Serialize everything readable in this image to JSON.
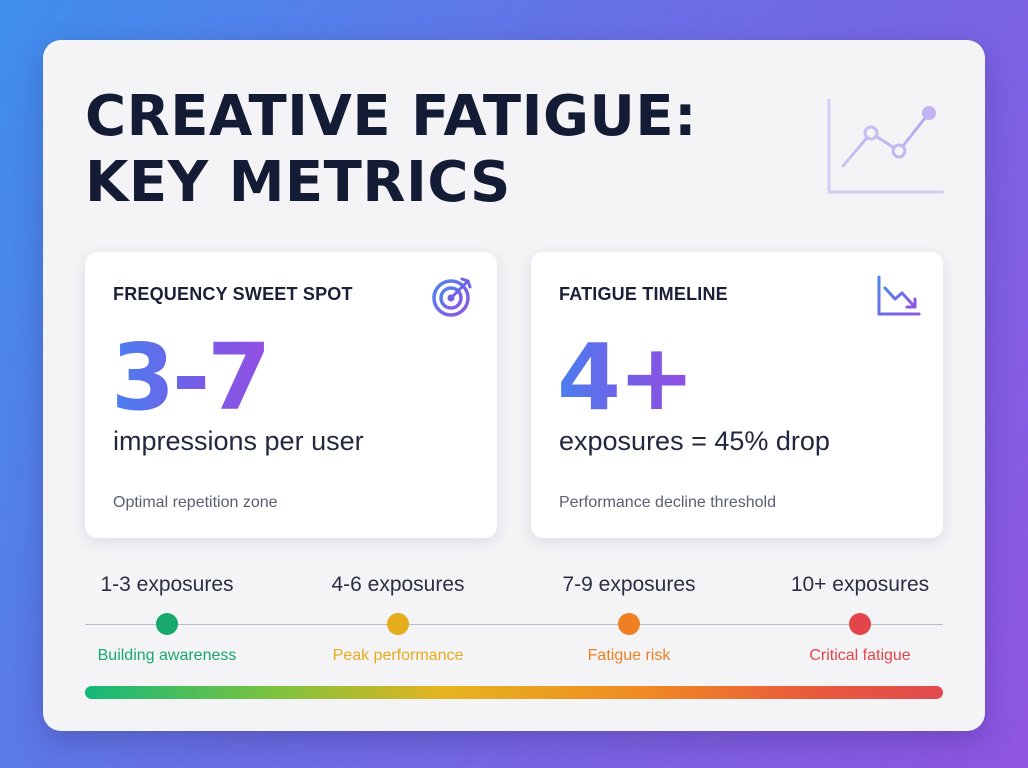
{
  "title": {
    "line1": "CREATIVE FATIGUE:",
    "line2": "KEY METRICS"
  },
  "hero_icon": "line-chart-icon",
  "cards": [
    {
      "title": "FREQUENCY SWEET SPOT",
      "icon": "target-icon",
      "number": "3-7",
      "metric": "impressions per user",
      "note": "Optimal repetition zone"
    },
    {
      "title": "FATIGUE TIMELINE",
      "icon": "trending-down-icon",
      "number": "4+",
      "metric": "exposures = 45% drop",
      "note": "Performance decline threshold"
    }
  ],
  "stages": [
    {
      "label": "1-3 exposures",
      "status": "Building awareness",
      "color": "#17a86b"
    },
    {
      "label": "4-6 exposures",
      "status": "Peak performance",
      "color": "#e5ac1c"
    },
    {
      "label": "7-9 exposures",
      "status": "Fatigue risk",
      "color": "#ee7f22"
    },
    {
      "label": "10+ exposures",
      "status": "Critical fatigue",
      "color": "#e2464a"
    }
  ],
  "colors": {
    "accent_blue": "#4a7ff0",
    "accent_purple": "#9250e2",
    "text_dark": "#141c35"
  }
}
